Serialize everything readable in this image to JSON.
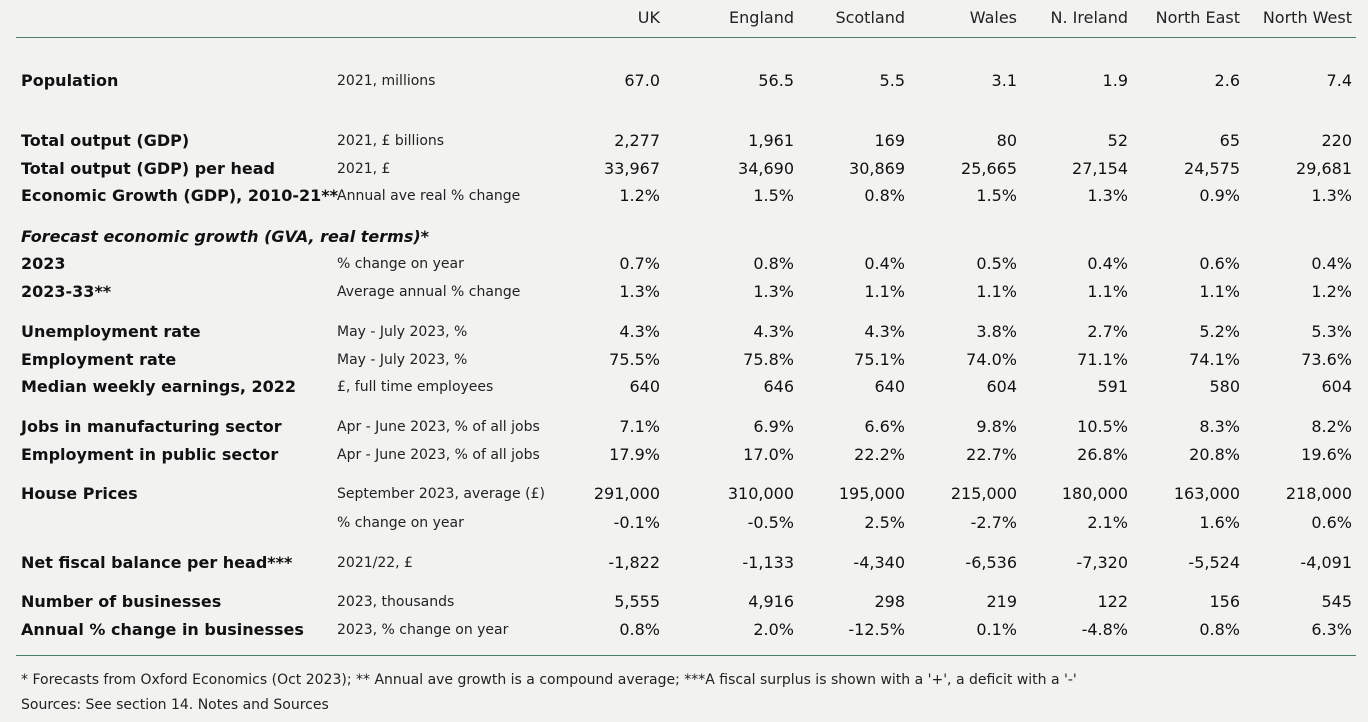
{
  "columns": [
    "UK",
    "England",
    "Scotland",
    "Wales",
    "N. Ireland",
    "North East",
    "North West"
  ],
  "rows": [
    {
      "label": "Population",
      "desc": "2021, millions",
      "values": [
        "67.0",
        "56.5",
        "5.5",
        "3.1",
        "1.9",
        "2.6",
        "7.4"
      ]
    },
    {
      "label": "Total output (GDP)",
      "desc": "2021, £ billions",
      "values": [
        "2,277",
        "1,961",
        "169",
        "80",
        "52",
        "65",
        "220"
      ]
    },
    {
      "label": "Total output (GDP) per head",
      "desc": "2021, £",
      "values": [
        "33,967",
        "34,690",
        "30,869",
        "25,665",
        "27,154",
        "24,575",
        "29,681"
      ]
    },
    {
      "label": "Economic Growth (GDP), 2010-21**",
      "desc": "Annual ave real % change",
      "values": [
        "1.2%",
        "1.5%",
        "0.8%",
        "1.5%",
        "1.3%",
        "0.9%",
        "1.3%"
      ]
    },
    {
      "label": "Forecast economic growth (GVA, real terms)*",
      "desc": "",
      "values": [
        "",
        "",
        "",
        "",
        "",
        "",
        ""
      ]
    },
    {
      "label": "2023",
      "desc": "% change on year",
      "values": [
        "0.7%",
        "0.8%",
        "0.4%",
        "0.5%",
        "0.4%",
        "0.6%",
        "0.4%"
      ]
    },
    {
      "label": "2023-33**",
      "desc": "Average annual % change",
      "values": [
        "1.3%",
        "1.3%",
        "1.1%",
        "1.1%",
        "1.1%",
        "1.1%",
        "1.2%"
      ]
    },
    {
      "label": "Unemployment rate",
      "desc": "May - July 2023, %",
      "values": [
        "4.3%",
        "4.3%",
        "4.3%",
        "3.8%",
        "2.7%",
        "5.2%",
        "5.3%"
      ]
    },
    {
      "label": "Employment rate",
      "desc": "May - July 2023, %",
      "values": [
        "75.5%",
        "75.8%",
        "75.1%",
        "74.0%",
        "71.1%",
        "74.1%",
        "73.6%"
      ]
    },
    {
      "label": "Median weekly earnings, 2022",
      "desc": "£, full time employees",
      "values": [
        "640",
        "646",
        "640",
        "604",
        "591",
        "580",
        "604"
      ]
    },
    {
      "label": "Jobs in manufacturing sector",
      "desc": "Apr - June 2023, % of all jobs",
      "values": [
        "7.1%",
        "6.9%",
        "6.6%",
        "9.8%",
        "10.5%",
        "8.3%",
        "8.2%"
      ]
    },
    {
      "label": "Employment in public sector",
      "desc": "Apr - June 2023, % of all jobs",
      "values": [
        "17.9%",
        "17.0%",
        "22.2%",
        "22.7%",
        "26.8%",
        "20.8%",
        "19.6%"
      ]
    },
    {
      "label": "House Prices",
      "desc": "September 2023, average (£)",
      "values": [
        "291,000",
        "310,000",
        "195,000",
        "215,000",
        "180,000",
        "163,000",
        "218,000"
      ]
    },
    {
      "label": "",
      "desc": "% change on year",
      "values": [
        "-0.1%",
        "-0.5%",
        "2.5%",
        "-2.7%",
        "2.1%",
        "1.6%",
        "0.6%"
      ]
    },
    {
      "label": "Net fiscal balance per head***",
      "desc": "2021/22, £",
      "values": [
        "-1,822",
        "-1,133",
        "-4,340",
        "-6,536",
        "-7,320",
        "-5,524",
        "-4,091"
      ]
    },
    {
      "label": "Number of businesses",
      "desc": "2023, thousands",
      "values": [
        "5,555",
        "4,916",
        "298",
        "219",
        "122",
        "156",
        "545"
      ]
    },
    {
      "label": "Annual % change in businesses",
      "desc": "2023, % change on year",
      "values": [
        "0.8%",
        "2.0%",
        "-12.5%",
        "0.1%",
        "-4.8%",
        "0.8%",
        "6.3%"
      ]
    }
  ],
  "footnotes": [
    "* Forecasts from Oxford Economics (Oct 2023); ** Annual ave growth is a compound average; ***A fiscal surplus is shown with a '+', a deficit with a '-'",
    "Sources: See section 14. Notes and Sources"
  ]
}
